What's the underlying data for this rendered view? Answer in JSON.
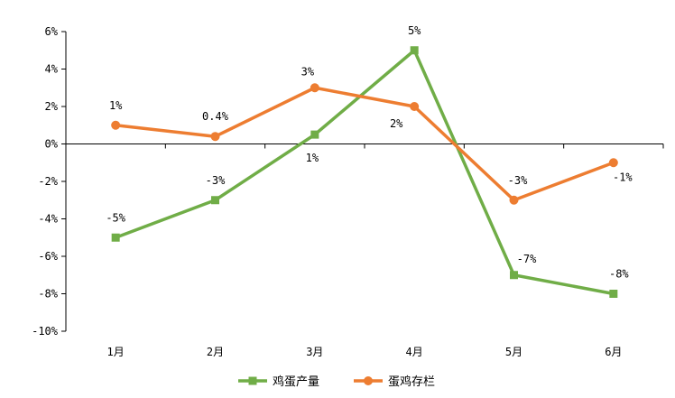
{
  "chart_data": {
    "type": "line",
    "categories": [
      "1月",
      "2月",
      "3月",
      "4月",
      "5月",
      "6月"
    ],
    "ylim": [
      -10,
      6
    ],
    "yticks": [
      6,
      4,
      2,
      0,
      -2,
      -4,
      -6,
      -8,
      -10
    ],
    "ytick_labels": [
      "6%",
      "4%",
      "2%",
      "0%",
      "-2%",
      "-4%",
      "-6%",
      "-8%",
      "-10%"
    ],
    "grid": false,
    "legend_position": "bottom",
    "series": [
      {
        "name": "鸡蛋产量",
        "color": "#70ad47",
        "marker": "square",
        "values": [
          -5,
          -3,
          0.5,
          5,
          -7,
          -8
        ],
        "labels": [
          "-5%",
          "-3%",
          "1%",
          "5%",
          "-7%",
          "-8%"
        ]
      },
      {
        "name": "蛋鸡存栏",
        "color": "#ed7d31",
        "marker": "circle",
        "values": [
          1,
          0.4,
          3,
          2,
          -3,
          -1
        ],
        "labels": [
          "1%",
          "0.4%",
          "3%",
          "2%",
          "-3%",
          "-1%"
        ]
      }
    ]
  }
}
